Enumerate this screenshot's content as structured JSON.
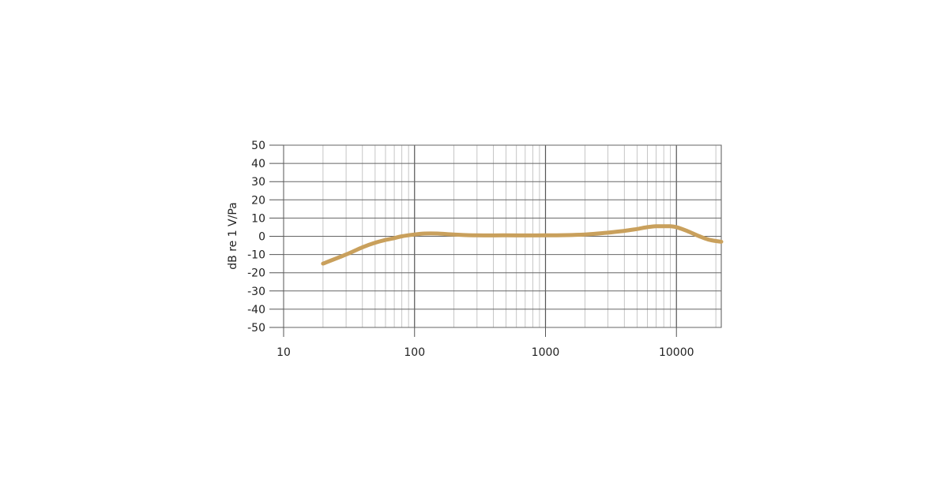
{
  "chart_data": {
    "type": "line",
    "title": "",
    "xlabel": "",
    "ylabel": "dB re 1 V/Pa",
    "x_scale": "log",
    "xlim": [
      10,
      22000
    ],
    "ylim": [
      -50,
      50
    ],
    "x_ticks": [
      10,
      100,
      1000,
      10000
    ],
    "x_tick_labels": [
      "10",
      "100",
      "1000",
      "10000"
    ],
    "y_ticks": [
      50,
      40,
      30,
      20,
      10,
      0,
      -10,
      -20,
      -30,
      -40,
      -50
    ],
    "y_tick_labels": [
      "50",
      "40",
      "30",
      "20",
      "10",
      "0",
      "-10",
      "-20",
      "-30",
      "-40",
      "-50"
    ],
    "grid": true,
    "legend": "none",
    "series": [
      {
        "color": "#c9a05c",
        "x": [
          20,
          30,
          40,
          50,
          60,
          70,
          80,
          100,
          120,
          150,
          200,
          300,
          500,
          1000,
          2000,
          3000,
          4000,
          5000,
          6000,
          7000,
          8000,
          9000,
          10000,
          12000,
          15000,
          18000,
          22000
        ],
        "y": [
          -15,
          -10,
          -6,
          -3.5,
          -2,
          -1,
          0,
          1,
          1.5,
          1.5,
          1,
          0.5,
          0.5,
          0.5,
          1,
          2,
          3,
          4,
          5,
          5.5,
          5.5,
          5.5,
          5,
          3,
          0,
          -2,
          -3
        ]
      }
    ]
  }
}
